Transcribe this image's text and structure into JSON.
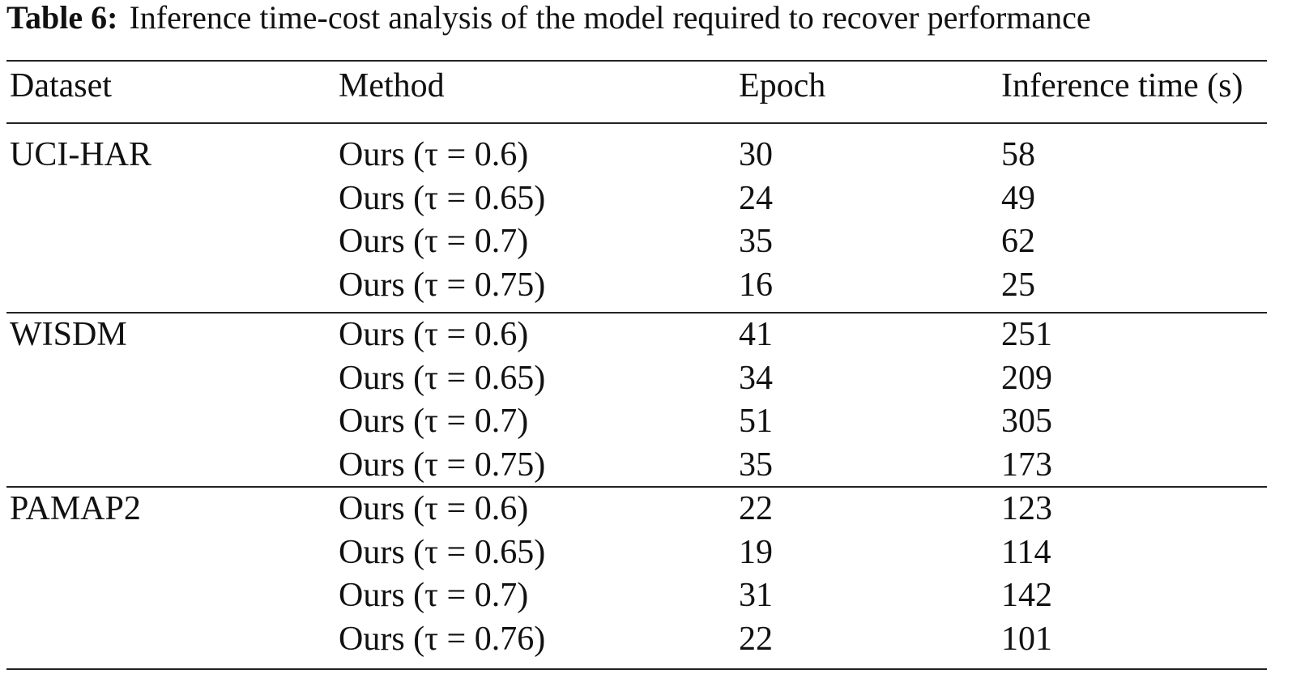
{
  "caption": {
    "label": "Table 6:",
    "text": "Inference time-cost analysis of the model required to recover performance"
  },
  "table": {
    "columns": [
      "Dataset",
      "Method",
      "Epoch",
      "Inference time (s)"
    ],
    "groups": [
      {
        "dataset": "UCI-HAR",
        "rows": [
          [
            "Ours (τ = 0.6)",
            30,
            58
          ],
          [
            "Ours (τ = 0.65)",
            24,
            49
          ],
          [
            "Ours (τ = 0.7)",
            35,
            62
          ],
          [
            "Ours (τ = 0.75)",
            16,
            25
          ]
        ]
      },
      {
        "dataset": "WISDM",
        "rows": [
          [
            "Ours (τ = 0.6)",
            41,
            251
          ],
          [
            "Ours (τ = 0.65)",
            34,
            209
          ],
          [
            "Ours (τ = 0.7)",
            51,
            305
          ],
          [
            "Ours (τ = 0.75)",
            35,
            173
          ]
        ]
      },
      {
        "dataset": "PAMAP2",
        "rows": [
          [
            "Ours (τ = 0.6)",
            22,
            123
          ],
          [
            "Ours (τ = 0.65)",
            19,
            114
          ],
          [
            "Ours (τ = 0.7)",
            31,
            142
          ],
          [
            "Ours (τ = 0.76)",
            22,
            101
          ]
        ]
      }
    ]
  }
}
